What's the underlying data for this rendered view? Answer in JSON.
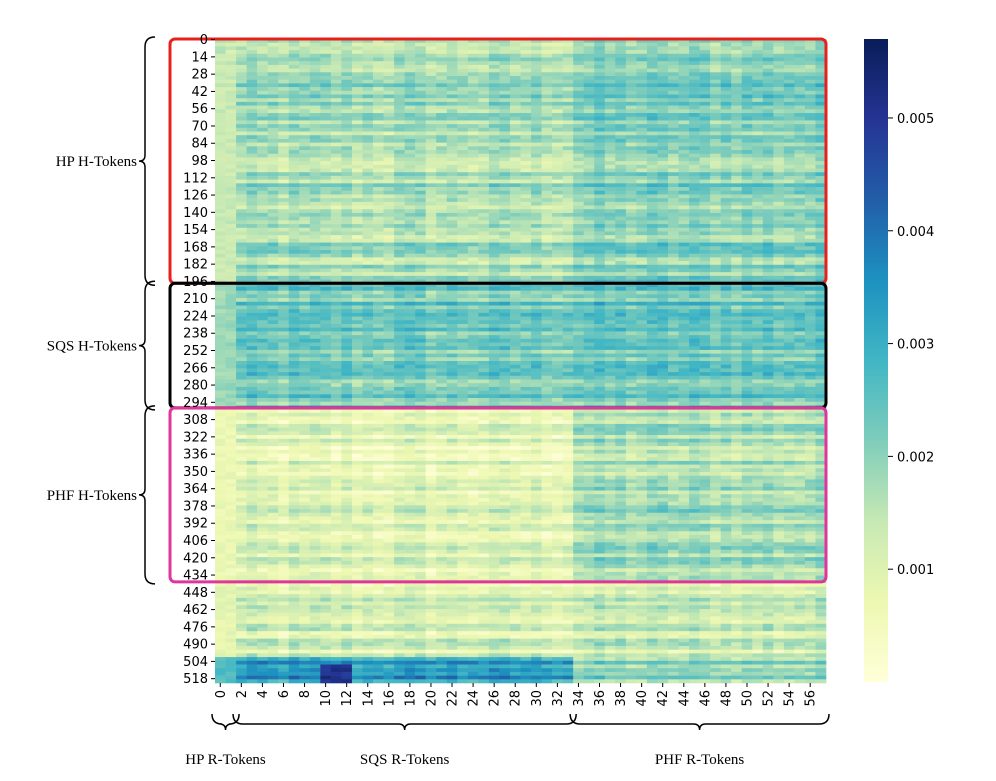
{
  "chart_data": {
    "type": "heatmap",
    "title": "",
    "xlabel": "",
    "ylabel": "",
    "rows": 522,
    "cols": 58,
    "y_ticks": [
      0,
      14,
      28,
      42,
      56,
      70,
      84,
      98,
      112,
      126,
      140,
      154,
      168,
      182,
      196,
      210,
      224,
      238,
      252,
      266,
      280,
      294,
      308,
      322,
      336,
      350,
      364,
      378,
      392,
      406,
      420,
      434,
      448,
      462,
      476,
      490,
      504,
      518
    ],
    "x_ticks": [
      0,
      2,
      4,
      6,
      8,
      10,
      12,
      14,
      16,
      18,
      20,
      22,
      24,
      26,
      28,
      30,
      32,
      34,
      36,
      38,
      40,
      42,
      44,
      46,
      48,
      50,
      52,
      54,
      56
    ],
    "colorscale": "YlGnBu",
    "colorbar": {
      "range": [
        0.0,
        0.0057
      ],
      "ticks": [
        "0.001",
        "0.002",
        "0.003",
        "0.004",
        "0.005"
      ]
    },
    "row_groups": [
      {
        "label": "HP  H-Tokens",
        "start": 0,
        "end": 197,
        "box_color": "#e8201c"
      },
      {
        "label": "SQS  H-Tokens",
        "start": 198,
        "end": 298,
        "box_color": "#000000"
      },
      {
        "label": "PHF H-Tokens",
        "start": 299,
        "end": 439,
        "box_color": "#e0359a"
      }
    ],
    "col_groups": [
      {
        "label": "HP R-Tokens",
        "start": 0,
        "end": 1
      },
      {
        "label": "SQS R-Tokens",
        "start": 2,
        "end": 33
      },
      {
        "label": "PHF R-Tokens",
        "start": 34,
        "end": 57
      }
    ],
    "approx_values": {
      "HP_rows": {
        "SQS_cols": 0.0017,
        "PHF_cols": 0.0021
      },
      "SQS_rows": {
        "SQS_cols": 0.0023,
        "PHF_cols": 0.0024
      },
      "PHF_rows": {
        "SQS_cols": 0.0009,
        "PHF_cols": 0.0017
      },
      "rest_rows": {
        "SQS_cols": 0.0011,
        "PHF_cols": 0.0013
      },
      "last_rows_500_521": {
        "SQS_cols": 0.0033,
        "PHF_cols": 0.0019
      }
    }
  }
}
